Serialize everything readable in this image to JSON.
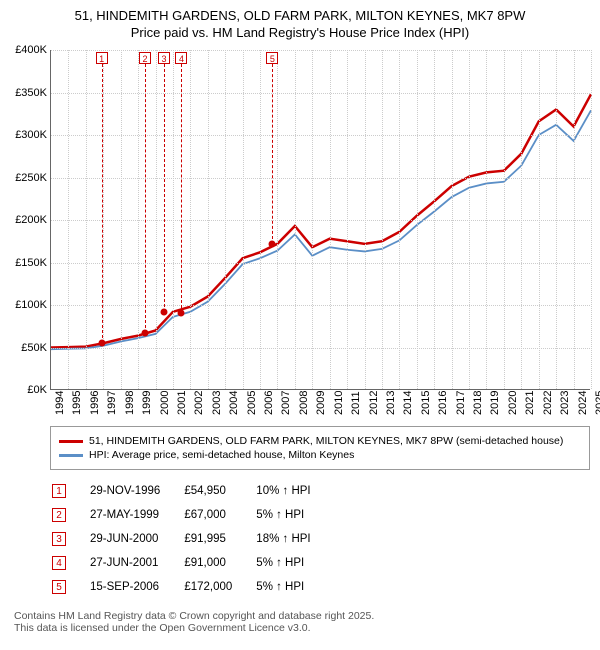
{
  "title_line1": "51, HINDEMITH GARDENS, OLD FARM PARK, MILTON KEYNES, MK7 8PW",
  "title_line2": "Price paid vs. HM Land Registry's House Price Index (HPI)",
  "chart": {
    "type": "line",
    "x_years": [
      1994,
      1995,
      1996,
      1997,
      1998,
      1999,
      2000,
      2001,
      2002,
      2003,
      2004,
      2005,
      2006,
      2007,
      2008,
      2009,
      2010,
      2011,
      2012,
      2013,
      2014,
      2015,
      2016,
      2017,
      2018,
      2019,
      2020,
      2021,
      2022,
      2023,
      2024,
      2025
    ],
    "ylim": [
      0,
      400000
    ],
    "ytick_step": 50000,
    "ytick_labels": [
      "£0K",
      "£50K",
      "£100K",
      "£150K",
      "£200K",
      "£250K",
      "£300K",
      "£350K",
      "£400K"
    ],
    "grid_color": "#cccccc",
    "background": "#ffffff",
    "axis_color": "#666666",
    "font_size_ticks": 11,
    "series": [
      {
        "name": "price_paid",
        "color": "#cc0000",
        "width": 2.5,
        "values": [
          50000,
          50500,
          51000,
          55000,
          60000,
          64000,
          70000,
          92000,
          98000,
          110000,
          132000,
          155000,
          162000,
          172000,
          193000,
          168000,
          178000,
          175000,
          172000,
          175000,
          186000,
          205000,
          222000,
          240000,
          251000,
          256000,
          258000,
          278000,
          316000,
          330000,
          310000,
          348000
        ]
      },
      {
        "name": "hpi",
        "color": "#5b8fc7",
        "width": 1.8,
        "values": [
          48000,
          48500,
          49000,
          52000,
          57000,
          61000,
          66000,
          86000,
          92000,
          104000,
          125000,
          148000,
          155000,
          164000,
          183000,
          158000,
          168000,
          165000,
          163000,
          166000,
          176000,
          194000,
          210000,
          227000,
          238000,
          243000,
          245000,
          264000,
          300000,
          312000,
          293000,
          329000
        ]
      }
    ],
    "sale_markers": [
      {
        "n": 1,
        "year": 1996.91,
        "price": 54950
      },
      {
        "n": 2,
        "year": 1999.4,
        "price": 67000
      },
      {
        "n": 3,
        "year": 2000.49,
        "price": 91995
      },
      {
        "n": 4,
        "year": 2001.49,
        "price": 91000
      },
      {
        "n": 5,
        "year": 2006.71,
        "price": 172000
      }
    ]
  },
  "legend": {
    "row1": {
      "color": "#cc0000",
      "label": "51, HINDEMITH GARDENS, OLD FARM PARK, MILTON KEYNES, MK7 8PW (semi-detached house)"
    },
    "row2": {
      "color": "#5b8fc7",
      "label": "HPI: Average price, semi-detached house, Milton Keynes"
    }
  },
  "sales_table": {
    "rows": [
      {
        "n": "1",
        "date": "29-NOV-1996",
        "price": "£54,950",
        "delta": "10% ↑ HPI"
      },
      {
        "n": "2",
        "date": "27-MAY-1999",
        "price": "£67,000",
        "delta": "5% ↑ HPI"
      },
      {
        "n": "3",
        "date": "29-JUN-2000",
        "price": "£91,995",
        "delta": "18% ↑ HPI"
      },
      {
        "n": "4",
        "date": "27-JUN-2001",
        "price": "£91,000",
        "delta": "5% ↑ HPI"
      },
      {
        "n": "5",
        "date": "15-SEP-2006",
        "price": "£172,000",
        "delta": "5% ↑ HPI"
      }
    ]
  },
  "footer_line1": "Contains HM Land Registry data © Crown copyright and database right 2025.",
  "footer_line2": "This data is licensed under the Open Government Licence v3.0."
}
